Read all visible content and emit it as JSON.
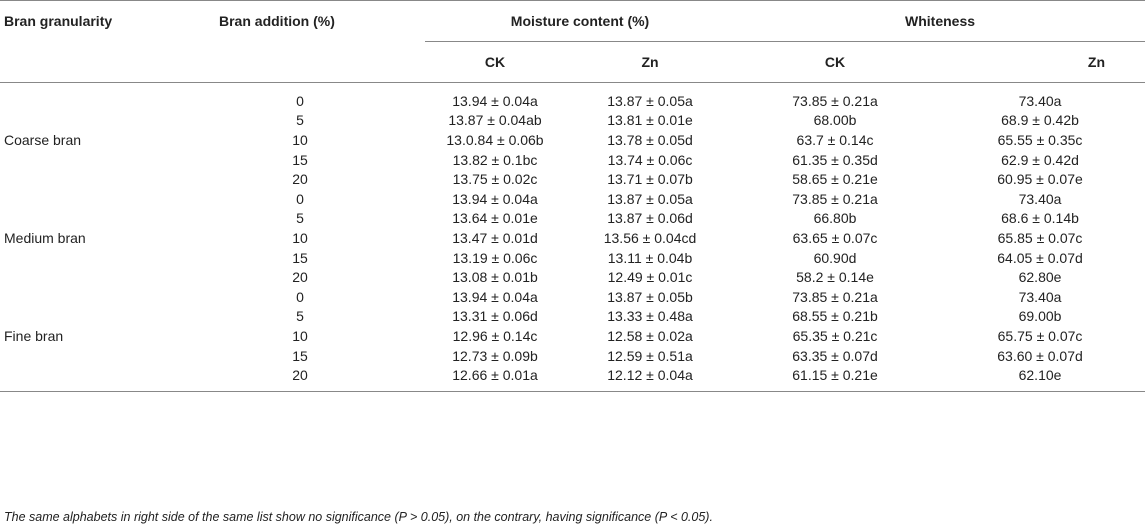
{
  "headers": {
    "bran_granularity": "Bran granularity",
    "bran_addition": "Bran addition (%)",
    "moisture_content": "Moisture content (%)",
    "whiteness": "Whiteness",
    "ck": "CK",
    "zn": "Zn"
  },
  "rows": [
    {
      "group": "",
      "addition": "0",
      "moisture_ck": "13.94 ± 0.04a",
      "moisture_zn": "13.87 ± 0.05a",
      "white_ck": "73.85 ± 0.21a",
      "white_zn": "73.40a"
    },
    {
      "group": "",
      "addition": "5",
      "moisture_ck": "13.87 ± 0.04ab",
      "moisture_zn": "13.81 ± 0.01e",
      "white_ck": "68.00b",
      "white_zn": "68.9 ± 0.42b"
    },
    {
      "group": "Coarse bran",
      "addition": "10",
      "moisture_ck": "13.0.84 ± 0.06b",
      "moisture_zn": "13.78 ± 0.05d",
      "white_ck": "63.7 ± 0.14c",
      "white_zn": "65.55 ± 0.35c"
    },
    {
      "group": "",
      "addition": "15",
      "moisture_ck": "13.82 ± 0.1bc",
      "moisture_zn": "13.74 ± 0.06c",
      "white_ck": "61.35 ± 0.35d",
      "white_zn": "62.9 ± 0.42d"
    },
    {
      "group": "",
      "addition": "20",
      "moisture_ck": "13.75 ± 0.02c",
      "moisture_zn": "13.71 ± 0.07b",
      "white_ck": "58.65 ± 0.21e",
      "white_zn": "60.95 ± 0.07e"
    },
    {
      "group": "",
      "addition": "0",
      "moisture_ck": "13.94 ± 0.04a",
      "moisture_zn": "13.87 ± 0.05a",
      "white_ck": "73.85 ± 0.21a",
      "white_zn": "73.40a"
    },
    {
      "group": "",
      "addition": "5",
      "moisture_ck": "13.64 ± 0.01e",
      "moisture_zn": "13.87 ± 0.06d",
      "white_ck": "66.80b",
      "white_zn": "68.6 ± 0.14b"
    },
    {
      "group": "Medium bran",
      "addition": "10",
      "moisture_ck": "13.47 ± 0.01d",
      "moisture_zn": "13.56 ± 0.04cd",
      "white_ck": "63.65 ± 0.07c",
      "white_zn": "65.85 ± 0.07c"
    },
    {
      "group": "",
      "addition": "15",
      "moisture_ck": "13.19 ± 0.06c",
      "moisture_zn": "13.11 ± 0.04b",
      "white_ck": "60.90d",
      "white_zn": "64.05 ± 0.07d"
    },
    {
      "group": "",
      "addition": "20",
      "moisture_ck": "13.08 ± 0.01b",
      "moisture_zn": "12.49 ± 0.01c",
      "white_ck": "58.2 ± 0.14e",
      "white_zn": "62.80e"
    },
    {
      "group": "",
      "addition": "0",
      "moisture_ck": "13.94 ± 0.04a",
      "moisture_zn": "13.87 ± 0.05b",
      "white_ck": "73.85 ± 0.21a",
      "white_zn": "73.40a"
    },
    {
      "group": "",
      "addition": "5",
      "moisture_ck": "13.31 ± 0.06d",
      "moisture_zn": "13.33 ± 0.48a",
      "white_ck": "68.55 ± 0.21b",
      "white_zn": "69.00b"
    },
    {
      "group": "Fine bran",
      "addition": "10",
      "moisture_ck": "12.96 ± 0.14c",
      "moisture_zn": "12.58 ± 0.02a",
      "white_ck": "65.35 ± 0.21c",
      "white_zn": "65.75 ± 0.07c"
    },
    {
      "group": "",
      "addition": "15",
      "moisture_ck": "12.73 ± 0.09b",
      "moisture_zn": "12.59 ± 0.51a",
      "white_ck": "63.35 ± 0.07d",
      "white_zn": "63.60 ± 0.07d"
    },
    {
      "group": "",
      "addition": "20",
      "moisture_ck": "12.66 ± 0.01a",
      "moisture_zn": "12.12 ± 0.04a",
      "white_ck": "61.15 ± 0.21e",
      "white_zn": "62.10e"
    }
  ],
  "footnote": "The same alphabets in right side of the same list show no significance (P > 0.05), on the contrary, having significance (P < 0.05)."
}
